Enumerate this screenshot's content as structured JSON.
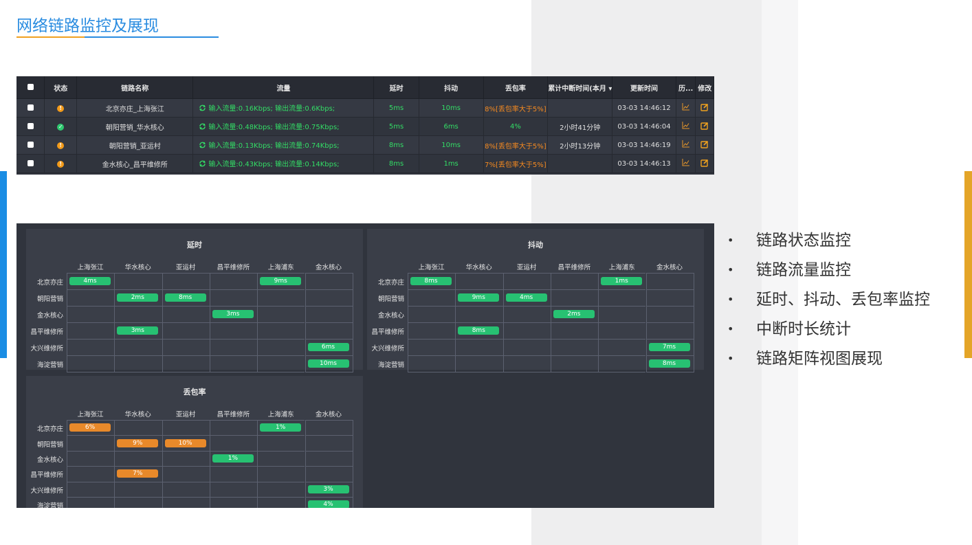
{
  "slide": {
    "title": "网络链路监控及展现",
    "title_colors": [
      "#f0a020",
      "#2a8ce0"
    ],
    "bullets": [
      "链路状态监控",
      "链路流量监控",
      "延时、抖动、丢包率监控",
      "中断时长统计",
      "链路矩阵视图展现"
    ],
    "bullet_char": "•"
  },
  "link_table": {
    "columns": [
      "",
      "状态",
      "链路名称",
      "流量",
      "延时",
      "抖动",
      "丢包率",
      "累计中断时间(本月",
      "更新时间",
      "历...",
      "修改"
    ],
    "rows": [
      {
        "status": "warn",
        "name": "北京亦庄_上海张江",
        "traffic": "输入流量:0.16Kbps; 输出流量:0.6Kbps;",
        "delay": "5ms",
        "jitter": "10ms",
        "loss": "8%[丢包率大于5%]",
        "loss_alert": true,
        "downtime": "",
        "updated": "03-03 14:46:12"
      },
      {
        "status": "ok",
        "name": "朝阳营销_华水核心",
        "traffic": "输入流量:0.48Kbps; 输出流量:0.75Kbps;",
        "delay": "5ms",
        "jitter": "6ms",
        "loss": "4%",
        "loss_alert": false,
        "downtime": "2小时41分钟",
        "updated": "03-03 14:46:04"
      },
      {
        "status": "warn",
        "name": "朝阳营销_亚运村",
        "traffic": "输入流量:0.13Kbps; 输出流量:0.74Kbps;",
        "delay": "8ms",
        "jitter": "10ms",
        "loss": "8%[丢包率大于5%]",
        "loss_alert": true,
        "downtime": "2小时13分钟",
        "updated": "03-03 14:46:19"
      },
      {
        "status": "warn",
        "name": "金水核心_昌平维修所",
        "traffic": "输入流量:0.43Kbps; 输出流量:0.14Kbps;",
        "delay": "8ms",
        "jitter": "1ms",
        "loss": "7%[丢包率大于5%]",
        "loss_alert": true,
        "downtime": "",
        "updated": "03-03 14:46:13"
      }
    ]
  },
  "matrices": [
    {
      "title": "延时",
      "cols": [
        "上海张江",
        "华水核心",
        "亚运村",
        "昌平维修所",
        "上海浦东",
        "金水核心"
      ],
      "rows": [
        "北京亦庄",
        "朝阳营销",
        "金水核心",
        "昌平维修所",
        "大兴维修所",
        "海淀营销"
      ],
      "cells": [
        {
          "r": 0,
          "c": 0,
          "v": "4ms",
          "s": "g"
        },
        {
          "r": 0,
          "c": 4,
          "v": "9ms",
          "s": "g"
        },
        {
          "r": 1,
          "c": 1,
          "v": "2ms",
          "s": "g"
        },
        {
          "r": 1,
          "c": 2,
          "v": "8ms",
          "s": "g"
        },
        {
          "r": 2,
          "c": 3,
          "v": "3ms",
          "s": "g"
        },
        {
          "r": 3,
          "c": 1,
          "v": "3ms",
          "s": "g"
        },
        {
          "r": 4,
          "c": 5,
          "v": "6ms",
          "s": "g"
        },
        {
          "r": 5,
          "c": 5,
          "v": "10ms",
          "s": "g"
        }
      ]
    },
    {
      "title": "抖动",
      "cols": [
        "上海张江",
        "华水核心",
        "亚运村",
        "昌平维修所",
        "上海浦东",
        "金水核心"
      ],
      "rows": [
        "北京亦庄",
        "朝阳营销",
        "金水核心",
        "昌平维修所",
        "大兴维修所",
        "海淀营销"
      ],
      "cells": [
        {
          "r": 0,
          "c": 0,
          "v": "8ms",
          "s": "g"
        },
        {
          "r": 0,
          "c": 4,
          "v": "1ms",
          "s": "g"
        },
        {
          "r": 1,
          "c": 1,
          "v": "9ms",
          "s": "g"
        },
        {
          "r": 1,
          "c": 2,
          "v": "4ms",
          "s": "g"
        },
        {
          "r": 2,
          "c": 3,
          "v": "2ms",
          "s": "g"
        },
        {
          "r": 3,
          "c": 1,
          "v": "8ms",
          "s": "g"
        },
        {
          "r": 4,
          "c": 5,
          "v": "7ms",
          "s": "g"
        },
        {
          "r": 5,
          "c": 5,
          "v": "8ms",
          "s": "g"
        }
      ]
    },
    {
      "title": "丢包率",
      "cols": [
        "上海张江",
        "华水核心",
        "亚运村",
        "昌平维修所",
        "上海浦东",
        "金水核心"
      ],
      "rows": [
        "北京亦庄",
        "朝阳营销",
        "金水核心",
        "昌平维修所",
        "大兴维修所",
        "海淀营销"
      ],
      "cells": [
        {
          "r": 0,
          "c": 0,
          "v": "6%",
          "s": "o"
        },
        {
          "r": 0,
          "c": 4,
          "v": "1%",
          "s": "g"
        },
        {
          "r": 1,
          "c": 1,
          "v": "9%",
          "s": "o"
        },
        {
          "r": 1,
          "c": 2,
          "v": "10%",
          "s": "o"
        },
        {
          "r": 2,
          "c": 3,
          "v": "1%",
          "s": "g"
        },
        {
          "r": 3,
          "c": 1,
          "v": "7%",
          "s": "o"
        },
        {
          "r": 4,
          "c": 5,
          "v": "3%",
          "s": "g"
        },
        {
          "r": 5,
          "c": 5,
          "v": "4%",
          "s": "g"
        }
      ]
    }
  ]
}
